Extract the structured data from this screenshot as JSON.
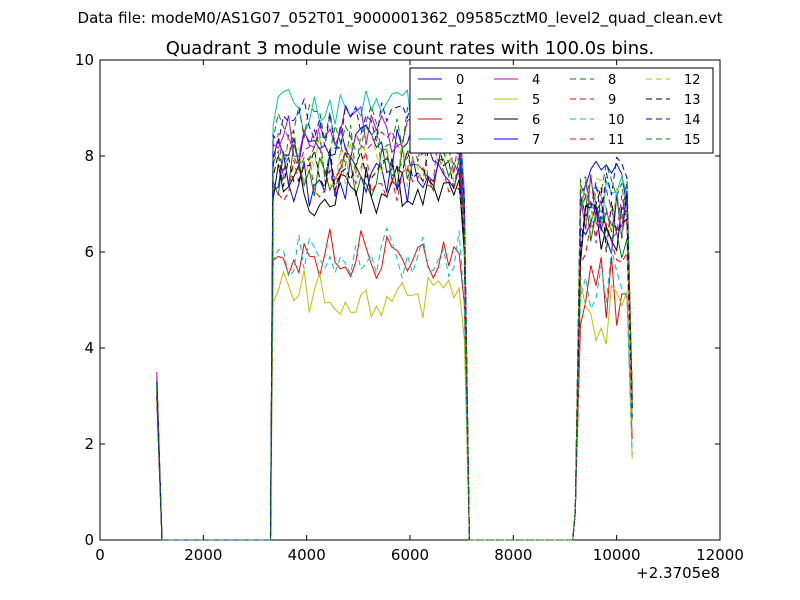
{
  "suptitle": "Data file: modeM0/AS1G07_052T01_9000001362_09585cztM0_level2_quad_clean.evt",
  "chart_data": {
    "type": "line",
    "title": "Quadrant 3 module wise count rates with 100.0s bins.",
    "xlabel": "",
    "ylabel": "",
    "xlim": [
      0,
      12000
    ],
    "ylim": [
      0,
      10
    ],
    "x_offset_label": "+2.3705e8",
    "x_ticks": [
      0,
      2000,
      4000,
      6000,
      8000,
      10000,
      12000
    ],
    "x_tick_labels": [
      "0",
      "2000",
      "4000",
      "6000",
      "8000",
      "10000",
      "12000"
    ],
    "y_ticks": [
      0,
      2,
      4,
      6,
      8,
      10
    ],
    "y_tick_labels": [
      "0",
      "2",
      "4",
      "6",
      "8",
      "10"
    ],
    "grid": false,
    "legend_position": "top-right",
    "x_segments": [
      {
        "start": 1100,
        "end": 3300,
        "step": 100
      },
      {
        "start": 3350,
        "end": 7050,
        "step": 100
      },
      {
        "start": 7150,
        "end": 9150,
        "step": 100
      },
      {
        "start": 9200,
        "end": 10300,
        "step": 100
      }
    ],
    "series": [
      {
        "name": "0",
        "color": "#0000ff",
        "dash": "solid",
        "levels": [
          3.4,
          8.2,
          7.3
        ]
      },
      {
        "name": "1",
        "color": "#008000",
        "dash": "solid",
        "levels": [
          3.1,
          7.7,
          6.5
        ]
      },
      {
        "name": "2",
        "color": "#ff0000",
        "dash": "solid",
        "levels": [
          3.0,
          6.0,
          5.2
        ]
      },
      {
        "name": "3",
        "color": "#00bfbf",
        "dash": "solid",
        "levels": [
          3.3,
          8.9,
          7.1
        ]
      },
      {
        "name": "4",
        "color": "#bf00bf",
        "dash": "solid",
        "levels": [
          3.5,
          8.5,
          7.0
        ]
      },
      {
        "name": "5",
        "color": "#bfbf00",
        "dash": "solid",
        "levels": [
          2.9,
          5.1,
          4.8
        ]
      },
      {
        "name": "6",
        "color": "#000000",
        "dash": "solid",
        "levels": [
          3.0,
          7.3,
          6.3
        ]
      },
      {
        "name": "7",
        "color": "#0000ff",
        "dash": "solid",
        "levels": [
          3.2,
          7.5,
          6.6
        ]
      },
      {
        "name": "8",
        "color": "#008000",
        "dash": "dashed",
        "levels": [
          3.2,
          8.6,
          7.2
        ]
      },
      {
        "name": "9",
        "color": "#ff0000",
        "dash": "dashed",
        "levels": [
          3.1,
          7.6,
          6.5
        ]
      },
      {
        "name": "10",
        "color": "#00bfbf",
        "dash": "dashed",
        "levels": [
          3.0,
          6.0,
          5.4
        ]
      },
      {
        "name": "11",
        "color": "#bf00bf",
        "dash": "dashed",
        "levels": [
          3.3,
          8.0,
          6.8
        ]
      },
      {
        "name": "12",
        "color": "#bfbf00",
        "dash": "dashed",
        "levels": [
          3.1,
          7.9,
          6.9
        ]
      },
      {
        "name": "13",
        "color": "#000000",
        "dash": "dashed",
        "levels": [
          3.0,
          7.8,
          6.6
        ]
      },
      {
        "name": "14",
        "color": "#0000ff",
        "dash": "dashed",
        "levels": [
          3.3,
          8.7,
          7.3
        ]
      },
      {
        "name": "15",
        "color": "#008000",
        "dash": "dashed",
        "levels": [
          3.2,
          8.1,
          7.1
        ]
      }
    ]
  }
}
